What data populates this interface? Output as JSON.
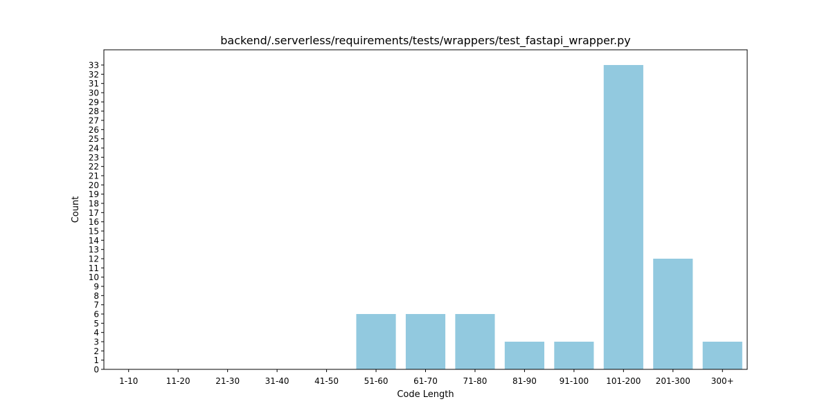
{
  "chart_data": {
    "type": "bar",
    "title": "backend/.serverless/requirements/tests/wrappers/test_fastapi_wrapper.py",
    "xlabel": "Code Length",
    "ylabel": "Count",
    "categories": [
      "1-10",
      "11-20",
      "21-30",
      "31-40",
      "41-50",
      "51-60",
      "61-70",
      "71-80",
      "81-90",
      "91-100",
      "101-200",
      "201-300",
      "300+"
    ],
    "values": [
      0,
      0,
      0,
      0,
      0,
      6,
      6,
      6,
      3,
      3,
      33,
      12,
      3
    ],
    "ylim": [
      0,
      34.65
    ],
    "yticks": [
      0,
      1,
      2,
      3,
      4,
      5,
      6,
      7,
      8,
      9,
      10,
      11,
      12,
      13,
      14,
      15,
      16,
      17,
      18,
      19,
      20,
      21,
      22,
      23,
      24,
      25,
      26,
      27,
      28,
      29,
      30,
      31,
      32,
      33
    ],
    "bar_color": "#92c9df",
    "grid": false,
    "legend": "none"
  }
}
